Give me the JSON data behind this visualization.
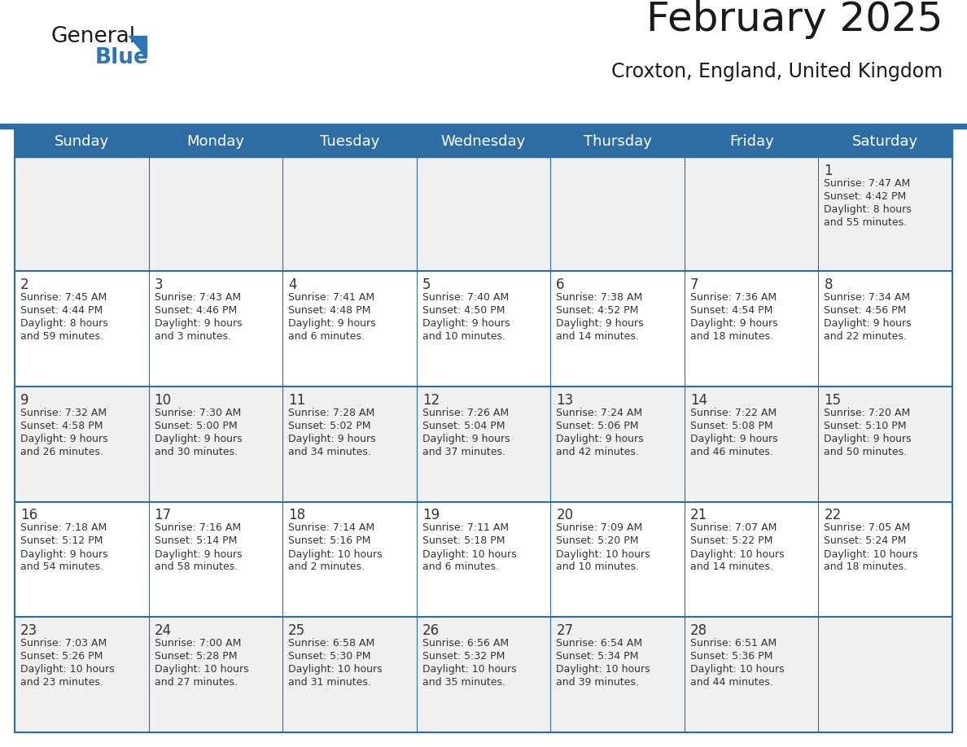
{
  "title": "February 2025",
  "subtitle": "Croxton, England, United Kingdom",
  "days_of_week": [
    "Sunday",
    "Monday",
    "Tuesday",
    "Wednesday",
    "Thursday",
    "Friday",
    "Saturday"
  ],
  "header_bg": "#2E6DA4",
  "header_text": "#FFFFFF",
  "row_bg_odd": "#F0F0F0",
  "row_bg_even": "#FFFFFF",
  "border_color": "#2E6DA4",
  "text_color": "#333333",
  "day_number_color": "#333333",
  "calendar_data": [
    [
      null,
      null,
      null,
      null,
      null,
      null,
      {
        "day": 1,
        "sunrise": "7:47 AM",
        "sunset": "4:42 PM",
        "daylight": "8 hours and 55 minutes."
      }
    ],
    [
      {
        "day": 2,
        "sunrise": "7:45 AM",
        "sunset": "4:44 PM",
        "daylight": "8 hours and 59 minutes."
      },
      {
        "day": 3,
        "sunrise": "7:43 AM",
        "sunset": "4:46 PM",
        "daylight": "9 hours and 3 minutes."
      },
      {
        "day": 4,
        "sunrise": "7:41 AM",
        "sunset": "4:48 PM",
        "daylight": "9 hours and 6 minutes."
      },
      {
        "day": 5,
        "sunrise": "7:40 AM",
        "sunset": "4:50 PM",
        "daylight": "9 hours and 10 minutes."
      },
      {
        "day": 6,
        "sunrise": "7:38 AM",
        "sunset": "4:52 PM",
        "daylight": "9 hours and 14 minutes."
      },
      {
        "day": 7,
        "sunrise": "7:36 AM",
        "sunset": "4:54 PM",
        "daylight": "9 hours and 18 minutes."
      },
      {
        "day": 8,
        "sunrise": "7:34 AM",
        "sunset": "4:56 PM",
        "daylight": "9 hours and 22 minutes."
      }
    ],
    [
      {
        "day": 9,
        "sunrise": "7:32 AM",
        "sunset": "4:58 PM",
        "daylight": "9 hours and 26 minutes."
      },
      {
        "day": 10,
        "sunrise": "7:30 AM",
        "sunset": "5:00 PM",
        "daylight": "9 hours and 30 minutes."
      },
      {
        "day": 11,
        "sunrise": "7:28 AM",
        "sunset": "5:02 PM",
        "daylight": "9 hours and 34 minutes."
      },
      {
        "day": 12,
        "sunrise": "7:26 AM",
        "sunset": "5:04 PM",
        "daylight": "9 hours and 37 minutes."
      },
      {
        "day": 13,
        "sunrise": "7:24 AM",
        "sunset": "5:06 PM",
        "daylight": "9 hours and 42 minutes."
      },
      {
        "day": 14,
        "sunrise": "7:22 AM",
        "sunset": "5:08 PM",
        "daylight": "9 hours and 46 minutes."
      },
      {
        "day": 15,
        "sunrise": "7:20 AM",
        "sunset": "5:10 PM",
        "daylight": "9 hours and 50 minutes."
      }
    ],
    [
      {
        "day": 16,
        "sunrise": "7:18 AM",
        "sunset": "5:12 PM",
        "daylight": "9 hours and 54 minutes."
      },
      {
        "day": 17,
        "sunrise": "7:16 AM",
        "sunset": "5:14 PM",
        "daylight": "9 hours and 58 minutes."
      },
      {
        "day": 18,
        "sunrise": "7:14 AM",
        "sunset": "5:16 PM",
        "daylight": "10 hours and 2 minutes."
      },
      {
        "day": 19,
        "sunrise": "7:11 AM",
        "sunset": "5:18 PM",
        "daylight": "10 hours and 6 minutes."
      },
      {
        "day": 20,
        "sunrise": "7:09 AM",
        "sunset": "5:20 PM",
        "daylight": "10 hours and 10 minutes."
      },
      {
        "day": 21,
        "sunrise": "7:07 AM",
        "sunset": "5:22 PM",
        "daylight": "10 hours and 14 minutes."
      },
      {
        "day": 22,
        "sunrise": "7:05 AM",
        "sunset": "5:24 PM",
        "daylight": "10 hours and 18 minutes."
      }
    ],
    [
      {
        "day": 23,
        "sunrise": "7:03 AM",
        "sunset": "5:26 PM",
        "daylight": "10 hours and 23 minutes."
      },
      {
        "day": 24,
        "sunrise": "7:00 AM",
        "sunset": "5:28 PM",
        "daylight": "10 hours and 27 minutes."
      },
      {
        "day": 25,
        "sunrise": "6:58 AM",
        "sunset": "5:30 PM",
        "daylight": "10 hours and 31 minutes."
      },
      {
        "day": 26,
        "sunrise": "6:56 AM",
        "sunset": "5:32 PM",
        "daylight": "10 hours and 35 minutes."
      },
      {
        "day": 27,
        "sunrise": "6:54 AM",
        "sunset": "5:34 PM",
        "daylight": "10 hours and 39 minutes."
      },
      {
        "day": 28,
        "sunrise": "6:51 AM",
        "sunset": "5:36 PM",
        "daylight": "10 hours and 44 minutes."
      },
      null
    ]
  ],
  "logo_text1": "General",
  "logo_text2": "Blue",
  "logo_color1": "#1a1a1a",
  "logo_color2": "#2E75B6",
  "logo_triangle_color": "#2E75B6",
  "title_fontsize": 36,
  "subtitle_fontsize": 17,
  "header_fontsize": 13,
  "day_num_fontsize": 12,
  "cell_text_fontsize": 9
}
